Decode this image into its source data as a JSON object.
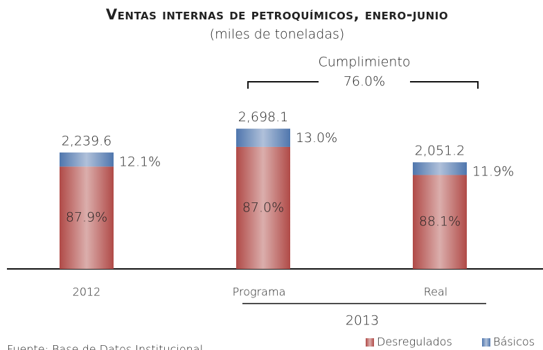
{
  "chart_data": {
    "type": "bar",
    "title": "Ventas internas de petroquímicos, enero-junio",
    "subtitle": "(miles de toneladas)",
    "categories": [
      "2012",
      "Programa",
      "Real"
    ],
    "group_label": "2013",
    "totals": [
      2239.6,
      2698.1,
      2051.2
    ],
    "total_labels": [
      "2,239.6",
      "2,698.1",
      "2,051.2"
    ],
    "series": [
      {
        "name": "Desregulados",
        "color": "#b04a47",
        "values": [
          87.9,
          87.0,
          88.1
        ],
        "value_labels": [
          "87.9%",
          "87.0%",
          "88.1%"
        ]
      },
      {
        "name": "Básicos",
        "color": "#4f76ad",
        "values": [
          12.1,
          13.0,
          11.9
        ],
        "value_labels": [
          "12.1%",
          "13.0%",
          "11.9%"
        ]
      }
    ],
    "annotation": {
      "label": "Cumplimiento",
      "value": 76.0,
      "value_label": "76.0%"
    },
    "source": "Fuente: Base de Datos Institucional"
  }
}
